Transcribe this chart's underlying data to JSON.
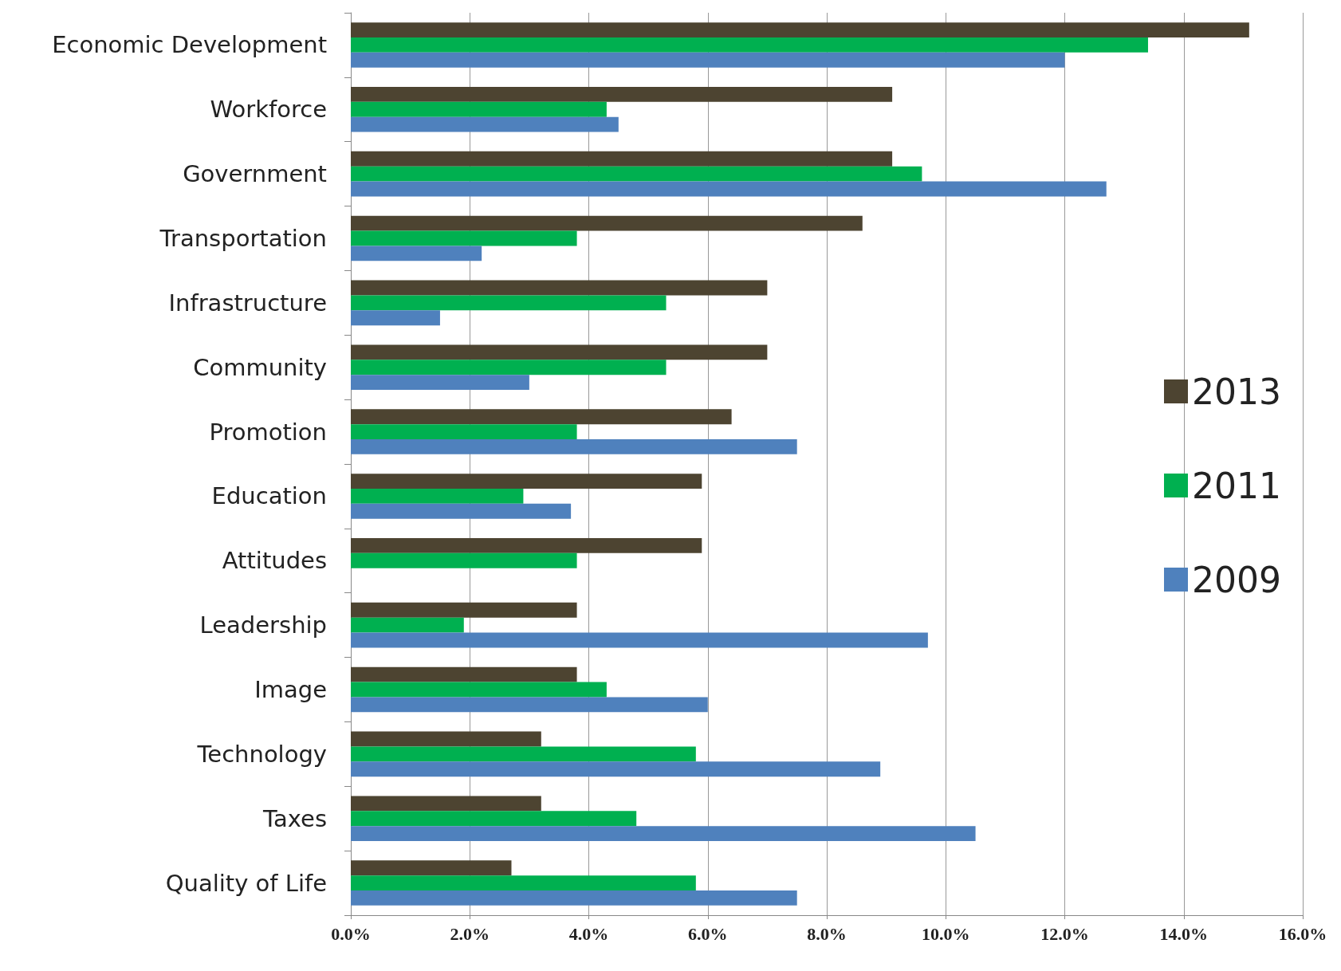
{
  "chart_data": {
    "type": "bar",
    "orientation": "horizontal",
    "categories": [
      "Economic Development",
      "Workforce",
      "Government",
      "Transportation",
      "Infrastructure",
      "Community",
      "Promotion",
      "Education",
      "Attitudes",
      "Leadership",
      "Image",
      "Technology",
      "Taxes",
      "Quality of Life"
    ],
    "series": [
      {
        "name": "2013",
        "color": "#4d4431",
        "values": [
          15.1,
          9.1,
          9.1,
          8.6,
          7.0,
          7.0,
          6.4,
          5.9,
          5.9,
          3.8,
          3.8,
          3.2,
          3.2,
          2.7
        ]
      },
      {
        "name": "2011",
        "color": "#00b050",
        "values": [
          13.4,
          4.3,
          9.6,
          3.8,
          5.3,
          5.3,
          3.8,
          2.9,
          3.8,
          1.9,
          4.3,
          5.8,
          4.8,
          5.8
        ]
      },
      {
        "name": "2009",
        "color": "#4f81bd",
        "values": [
          12.0,
          4.5,
          12.7,
          2.2,
          1.5,
          3.0,
          7.5,
          3.7,
          0,
          9.7,
          6.0,
          8.9,
          10.5,
          7.5
        ]
      }
    ],
    "xlim": [
      0,
      16
    ],
    "xticks": [
      {
        "value": 0,
        "label": "0.0%"
      },
      {
        "value": 2,
        "label": "2.0%"
      },
      {
        "value": 4,
        "label": "4.0%"
      },
      {
        "value": 6,
        "label": "6.0%"
      },
      {
        "value": 8,
        "label": "8.0%"
      },
      {
        "value": 10,
        "label": "10.0%"
      },
      {
        "value": 12,
        "label": "12.0%"
      },
      {
        "value": 14,
        "label": "14.0%"
      },
      {
        "value": 16,
        "label": "16.0%"
      }
    ],
    "grid": "x",
    "legend": "right"
  }
}
